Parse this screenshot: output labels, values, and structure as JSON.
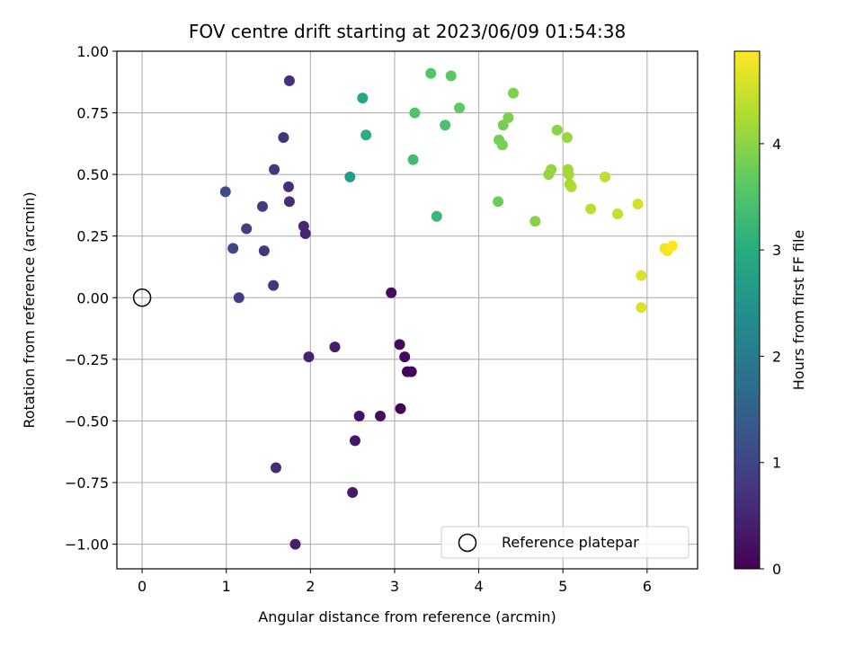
{
  "chart_data": {
    "type": "scatter",
    "title": "FOV centre drift starting at 2023/06/09 01:54:38",
    "xlabel": "Angular distance from reference (arcmin)",
    "ylabel": "Rotation from reference (arcmin)",
    "xlim": [
      -0.3,
      6.6
    ],
    "ylim": [
      -1.1,
      1.0
    ],
    "x_ticks": [
      "0",
      "1",
      "2",
      "3",
      "4",
      "5",
      "6"
    ],
    "x_tick_values": [
      0,
      1,
      2,
      3,
      4,
      5,
      6
    ],
    "y_ticks": [
      "1.00",
      "0.75",
      "0.50",
      "0.25",
      "0.00",
      "−0.25",
      "−0.50",
      "−0.75",
      "−1.00"
    ],
    "y_tick_values": [
      1.0,
      0.75,
      0.5,
      0.25,
      0.0,
      -0.25,
      -0.5,
      -0.75,
      -1.0
    ],
    "grid": true,
    "legend": {
      "label": "Reference platepar",
      "location": "lower right"
    },
    "reference_point": {
      "x": 0,
      "y": 0
    },
    "colorbar": {
      "label": "Hours from first FF file",
      "colormap": "viridis",
      "range": [
        0,
        4.87
      ],
      "ticks": [
        "0",
        "1",
        "2",
        "3",
        "4"
      ],
      "tick_values": [
        0,
        1,
        2,
        3,
        4
      ]
    },
    "points": [
      {
        "x": 3.07,
        "y": -0.45,
        "c": 0.0
      },
      {
        "x": 3.2,
        "y": -0.3,
        "c": 0.03
      },
      {
        "x": 3.15,
        "y": -0.3,
        "c": 0.07
      },
      {
        "x": 3.12,
        "y": -0.24,
        "c": 0.1
      },
      {
        "x": 3.06,
        "y": -0.19,
        "c": 0.13
      },
      {
        "x": 2.96,
        "y": 0.02,
        "c": 0.17
      },
      {
        "x": 2.83,
        "y": -0.48,
        "c": 0.2
      },
      {
        "x": 2.58,
        "y": -0.48,
        "c": 0.25
      },
      {
        "x": 2.53,
        "y": -0.58,
        "c": 0.3
      },
      {
        "x": 2.5,
        "y": -0.79,
        "c": 0.33
      },
      {
        "x": 2.29,
        "y": -0.2,
        "c": 0.37
      },
      {
        "x": 1.82,
        "y": -1.0,
        "c": 0.4
      },
      {
        "x": 1.98,
        "y": -0.24,
        "c": 0.45
      },
      {
        "x": 1.94,
        "y": 0.26,
        "c": 0.5
      },
      {
        "x": 1.92,
        "y": 0.29,
        "c": 0.53
      },
      {
        "x": 1.59,
        "y": -0.69,
        "c": 0.57
      },
      {
        "x": 1.75,
        "y": 0.39,
        "c": 0.6
      },
      {
        "x": 1.74,
        "y": 0.45,
        "c": 0.63
      },
      {
        "x": 1.75,
        "y": 0.88,
        "c": 0.66
      },
      {
        "x": 1.68,
        "y": 0.65,
        "c": 0.7
      },
      {
        "x": 1.57,
        "y": 0.52,
        "c": 0.73
      },
      {
        "x": 1.56,
        "y": 0.05,
        "c": 0.77
      },
      {
        "x": 1.45,
        "y": 0.19,
        "c": 0.8
      },
      {
        "x": 1.43,
        "y": 0.37,
        "c": 0.84
      },
      {
        "x": 1.15,
        "y": -0.0,
        "c": 0.9
      },
      {
        "x": 1.24,
        "y": 0.28,
        "c": 0.95
      },
      {
        "x": 1.08,
        "y": 0.2,
        "c": 1.0
      },
      {
        "x": 0.99,
        "y": 0.43,
        "c": 1.1
      },
      {
        "x": 2.47,
        "y": 0.49,
        "c": 2.7
      },
      {
        "x": 2.62,
        "y": 0.81,
        "c": 2.9
      },
      {
        "x": 2.66,
        "y": 0.66,
        "c": 3.05
      },
      {
        "x": 3.5,
        "y": 0.33,
        "c": 3.25
      },
      {
        "x": 3.22,
        "y": 0.56,
        "c": 3.35
      },
      {
        "x": 3.6,
        "y": 0.7,
        "c": 3.45
      },
      {
        "x": 3.24,
        "y": 0.75,
        "c": 3.5
      },
      {
        "x": 3.43,
        "y": 0.91,
        "c": 3.55
      },
      {
        "x": 3.67,
        "y": 0.9,
        "c": 3.6
      },
      {
        "x": 3.77,
        "y": 0.77,
        "c": 3.65
      },
      {
        "x": 4.23,
        "y": 0.39,
        "c": 3.75
      },
      {
        "x": 4.24,
        "y": 0.64,
        "c": 3.8
      },
      {
        "x": 4.29,
        "y": 0.7,
        "c": 3.83
      },
      {
        "x": 4.28,
        "y": 0.62,
        "c": 3.85
      },
      {
        "x": 4.35,
        "y": 0.73,
        "c": 3.88
      },
      {
        "x": 4.41,
        "y": 0.83,
        "c": 3.9
      },
      {
        "x": 4.67,
        "y": 0.31,
        "c": 3.95
      },
      {
        "x": 4.93,
        "y": 0.68,
        "c": 4.0
      },
      {
        "x": 4.83,
        "y": 0.5,
        "c": 4.05
      },
      {
        "x": 4.86,
        "y": 0.52,
        "c": 4.07
      },
      {
        "x": 5.05,
        "y": 0.65,
        "c": 4.1
      },
      {
        "x": 5.06,
        "y": 0.52,
        "c": 4.15
      },
      {
        "x": 5.07,
        "y": 0.5,
        "c": 4.18
      },
      {
        "x": 5.08,
        "y": 0.46,
        "c": 4.2
      },
      {
        "x": 5.1,
        "y": 0.45,
        "c": 4.25
      },
      {
        "x": 5.33,
        "y": 0.36,
        "c": 4.35
      },
      {
        "x": 5.5,
        "y": 0.49,
        "c": 4.4
      },
      {
        "x": 5.65,
        "y": 0.34,
        "c": 4.45
      },
      {
        "x": 5.89,
        "y": 0.38,
        "c": 4.55
      },
      {
        "x": 5.93,
        "y": 0.09,
        "c": 4.6
      },
      {
        "x": 5.93,
        "y": -0.04,
        "c": 4.62
      },
      {
        "x": 6.21,
        "y": 0.2,
        "c": 4.75
      },
      {
        "x": 6.24,
        "y": 0.19,
        "c": 4.8
      },
      {
        "x": 6.3,
        "y": 0.21,
        "c": 4.87
      }
    ]
  }
}
